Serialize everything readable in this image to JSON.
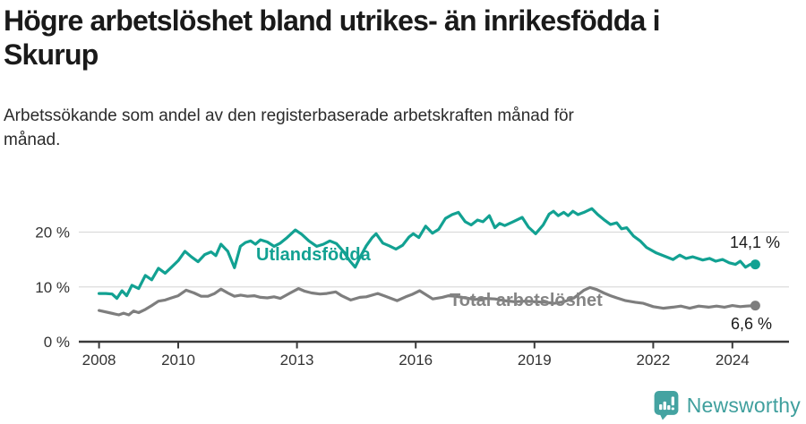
{
  "header": {
    "title": "Högre arbetslöshet bland utrikes- än inrikesfödda i\nSkurup",
    "subtitle": "Arbetssökande som andel av den registerbaserade arbetskraften månad för\nmånad."
  },
  "chart_data": {
    "type": "line",
    "title": "Högre arbetslöshet bland utrikes- än inrikesfödda i Skurup",
    "subtitle": "Arbetssökande som andel av den registerbaserade arbetskraften månad för månad.",
    "xlabel": "",
    "ylabel": "",
    "grid": "horizontal",
    "legend": "inline-labels",
    "xlim": [
      2007.5,
      2025.4
    ],
    "ylim": [
      0,
      26
    ],
    "xticks": [
      2008,
      2010,
      2013,
      2016,
      2019,
      2022,
      2024
    ],
    "xtick_labels": [
      "2008",
      "2010",
      "2013",
      "2016",
      "2019",
      "2022",
      "2024"
    ],
    "ytick_values": [
      0,
      10,
      20
    ],
    "ytick_labels": [
      "0 %",
      "10 %",
      "20 %"
    ],
    "series": [
      {
        "name": "Utlandsfödda",
        "color": "#12a192",
        "end_value": 14.1,
        "end_label": "14,1 %",
        "points": [
          [
            2008.0,
            8.8
          ],
          [
            2008.17,
            8.8
          ],
          [
            2008.33,
            8.7
          ],
          [
            2008.45,
            7.9
          ],
          [
            2008.58,
            9.3
          ],
          [
            2008.7,
            8.4
          ],
          [
            2008.83,
            10.3
          ],
          [
            2009.0,
            9.7
          ],
          [
            2009.17,
            12.1
          ],
          [
            2009.33,
            11.3
          ],
          [
            2009.5,
            13.4
          ],
          [
            2009.67,
            12.5
          ],
          [
            2009.83,
            13.6
          ],
          [
            2010.0,
            14.8
          ],
          [
            2010.17,
            16.5
          ],
          [
            2010.33,
            15.5
          ],
          [
            2010.5,
            14.6
          ],
          [
            2010.67,
            15.9
          ],
          [
            2010.83,
            16.4
          ],
          [
            2010.95,
            15.7
          ],
          [
            2011.08,
            17.8
          ],
          [
            2011.25,
            16.5
          ],
          [
            2011.42,
            13.5
          ],
          [
            2011.57,
            17.4
          ],
          [
            2011.7,
            18.1
          ],
          [
            2011.83,
            18.4
          ],
          [
            2011.95,
            17.8
          ],
          [
            2012.08,
            18.6
          ],
          [
            2012.25,
            18.2
          ],
          [
            2012.42,
            17.4
          ],
          [
            2012.58,
            18.0
          ],
          [
            2012.75,
            19.0
          ],
          [
            2012.96,
            20.4
          ],
          [
            2013.12,
            19.6
          ],
          [
            2013.3,
            18.4
          ],
          [
            2013.5,
            17.4
          ],
          [
            2013.67,
            17.8
          ],
          [
            2013.83,
            18.4
          ],
          [
            2014.0,
            17.9
          ],
          [
            2014.17,
            16.5
          ],
          [
            2014.33,
            14.8
          ],
          [
            2014.47,
            13.6
          ],
          [
            2014.6,
            15.5
          ],
          [
            2014.75,
            17.5
          ],
          [
            2014.9,
            19.0
          ],
          [
            2015.0,
            19.7
          ],
          [
            2015.17,
            18.0
          ],
          [
            2015.33,
            17.5
          ],
          [
            2015.5,
            16.9
          ],
          [
            2015.67,
            17.6
          ],
          [
            2015.83,
            19.1
          ],
          [
            2015.94,
            19.7
          ],
          [
            2016.08,
            19.0
          ],
          [
            2016.25,
            21.1
          ],
          [
            2016.42,
            19.8
          ],
          [
            2016.58,
            20.5
          ],
          [
            2016.75,
            22.5
          ],
          [
            2016.92,
            23.2
          ],
          [
            2017.08,
            23.6
          ],
          [
            2017.25,
            21.9
          ],
          [
            2017.4,
            21.3
          ],
          [
            2017.56,
            22.2
          ],
          [
            2017.7,
            21.9
          ],
          [
            2017.86,
            23.0
          ],
          [
            2018.0,
            20.8
          ],
          [
            2018.12,
            21.6
          ],
          [
            2018.25,
            21.2
          ],
          [
            2018.46,
            21.9
          ],
          [
            2018.69,
            22.7
          ],
          [
            2018.85,
            20.9
          ],
          [
            2019.03,
            19.7
          ],
          [
            2019.22,
            21.3
          ],
          [
            2019.37,
            23.3
          ],
          [
            2019.48,
            23.8
          ],
          [
            2019.6,
            23.0
          ],
          [
            2019.74,
            23.6
          ],
          [
            2019.85,
            23.0
          ],
          [
            2019.97,
            23.8
          ],
          [
            2020.1,
            23.2
          ],
          [
            2020.25,
            23.6
          ],
          [
            2020.45,
            24.3
          ],
          [
            2020.6,
            23.2
          ],
          [
            2020.75,
            22.3
          ],
          [
            2020.92,
            21.4
          ],
          [
            2021.08,
            21.7
          ],
          [
            2021.2,
            20.6
          ],
          [
            2021.33,
            20.8
          ],
          [
            2021.5,
            19.3
          ],
          [
            2021.67,
            18.4
          ],
          [
            2021.83,
            17.2
          ],
          [
            2022.08,
            16.2
          ],
          [
            2022.33,
            15.5
          ],
          [
            2022.5,
            15.0
          ],
          [
            2022.67,
            15.8
          ],
          [
            2022.83,
            15.2
          ],
          [
            2023.0,
            15.5
          ],
          [
            2023.25,
            14.9
          ],
          [
            2023.42,
            15.2
          ],
          [
            2023.58,
            14.7
          ],
          [
            2023.75,
            15.0
          ],
          [
            2023.92,
            14.4
          ],
          [
            2024.08,
            14.1
          ],
          [
            2024.2,
            14.7
          ],
          [
            2024.33,
            13.6
          ],
          [
            2024.45,
            14.1
          ],
          [
            2024.58,
            14.1
          ]
        ]
      },
      {
        "name": "Total arbetslöshet",
        "color": "#7e7e7e",
        "end_value": 6.6,
        "end_label": "6,6 %",
        "points": [
          [
            2008.0,
            5.7
          ],
          [
            2008.25,
            5.3
          ],
          [
            2008.5,
            4.9
          ],
          [
            2008.62,
            5.2
          ],
          [
            2008.75,
            4.9
          ],
          [
            2008.87,
            5.6
          ],
          [
            2009.0,
            5.3
          ],
          [
            2009.17,
            5.9
          ],
          [
            2009.33,
            6.6
          ],
          [
            2009.5,
            7.4
          ],
          [
            2009.67,
            7.6
          ],
          [
            2009.83,
            8.0
          ],
          [
            2010.0,
            8.4
          ],
          [
            2010.2,
            9.4
          ],
          [
            2010.4,
            8.9
          ],
          [
            2010.58,
            8.3
          ],
          [
            2010.75,
            8.3
          ],
          [
            2010.92,
            8.8
          ],
          [
            2011.08,
            9.6
          ],
          [
            2011.25,
            8.9
          ],
          [
            2011.42,
            8.3
          ],
          [
            2011.58,
            8.5
          ],
          [
            2011.75,
            8.3
          ],
          [
            2011.92,
            8.4
          ],
          [
            2012.08,
            8.1
          ],
          [
            2012.25,
            8.0
          ],
          [
            2012.42,
            8.2
          ],
          [
            2012.58,
            7.9
          ],
          [
            2012.83,
            8.9
          ],
          [
            2013.04,
            9.7
          ],
          [
            2013.2,
            9.2
          ],
          [
            2013.37,
            8.9
          ],
          [
            2013.58,
            8.7
          ],
          [
            2013.75,
            8.8
          ],
          [
            2013.98,
            9.1
          ],
          [
            2014.13,
            8.4
          ],
          [
            2014.36,
            7.6
          ],
          [
            2014.59,
            8.1
          ],
          [
            2014.75,
            8.2
          ],
          [
            2015.04,
            8.8
          ],
          [
            2015.2,
            8.4
          ],
          [
            2015.53,
            7.5
          ],
          [
            2015.75,
            8.2
          ],
          [
            2015.9,
            8.6
          ],
          [
            2016.1,
            9.3
          ],
          [
            2016.43,
            7.8
          ],
          [
            2016.67,
            8.1
          ],
          [
            2016.83,
            8.4
          ],
          [
            2017.0,
            8.3
          ],
          [
            2017.25,
            8.0
          ],
          [
            2017.5,
            7.7
          ],
          [
            2017.75,
            7.9
          ],
          [
            2018.0,
            7.8
          ],
          [
            2018.25,
            7.5
          ],
          [
            2018.5,
            7.3
          ],
          [
            2018.75,
            7.4
          ],
          [
            2019.0,
            7.3
          ],
          [
            2019.25,
            7.2
          ],
          [
            2019.5,
            7.0
          ],
          [
            2019.75,
            7.3
          ],
          [
            2020.0,
            8.0
          ],
          [
            2020.25,
            9.4
          ],
          [
            2020.4,
            9.9
          ],
          [
            2020.58,
            9.5
          ],
          [
            2020.75,
            8.9
          ],
          [
            2020.92,
            8.4
          ],
          [
            2021.08,
            8.0
          ],
          [
            2021.3,
            7.5
          ],
          [
            2021.55,
            7.2
          ],
          [
            2021.75,
            7.0
          ],
          [
            2022.0,
            6.4
          ],
          [
            2022.25,
            6.1
          ],
          [
            2022.5,
            6.3
          ],
          [
            2022.7,
            6.5
          ],
          [
            2022.92,
            6.1
          ],
          [
            2023.15,
            6.5
          ],
          [
            2023.4,
            6.3
          ],
          [
            2023.6,
            6.5
          ],
          [
            2023.8,
            6.3
          ],
          [
            2024.0,
            6.6
          ],
          [
            2024.2,
            6.4
          ],
          [
            2024.35,
            6.5
          ],
          [
            2024.58,
            6.6
          ]
        ]
      }
    ]
  },
  "footer": {
    "brand": "Newsworthy",
    "logo_icon": "bar-chart-speech-bubble"
  },
  "colors": {
    "accent_teal": "#12a192",
    "series_gray": "#7e7e7e",
    "gray_label": "#848484",
    "brand_teal": "#3f9f9d",
    "axis": "#3a3a3a",
    "gridline": "#dcdcdc",
    "title_text": "#1a1a1a"
  }
}
